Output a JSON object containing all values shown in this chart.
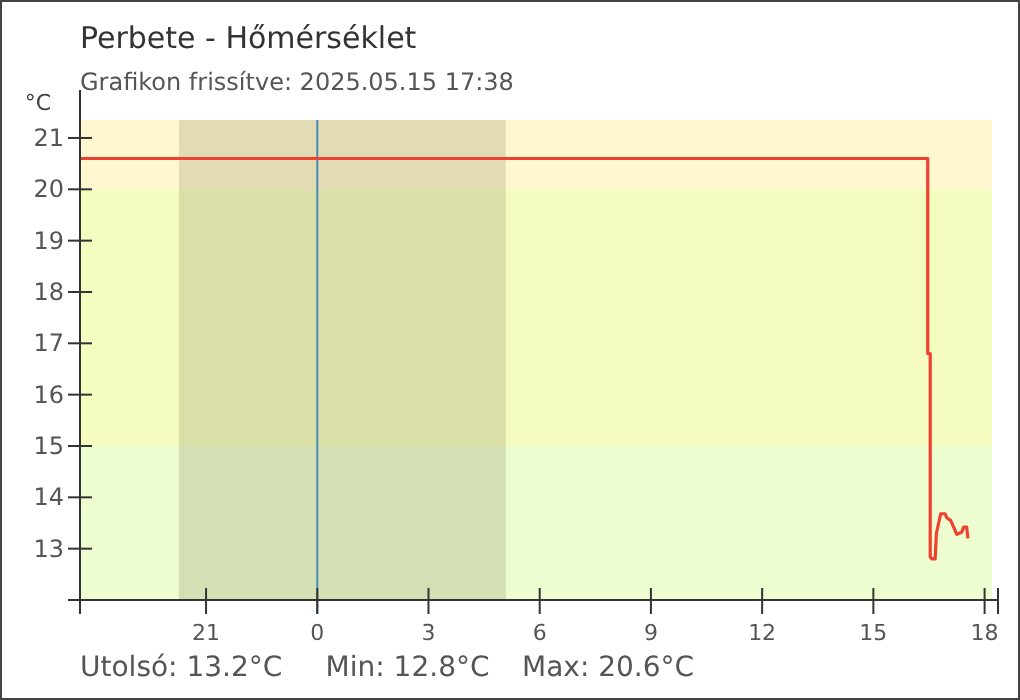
{
  "chart_data": {
    "type": "line",
    "title": "Perbete - Hőmérséklet",
    "subtitle": "Grafikon frissítve: 2025.05.15 17:38",
    "ylabel": "°C",
    "annotations": [
      "Utolsó: 13.2°C",
      "Min: 12.8°C",
      "Max: 20.6°C"
    ],
    "x": [
      "2025-05-14T17:36",
      "2025-05-15T16:28",
      "2025-05-15T16:28",
      "2025-05-15T16:32",
      "2025-05-15T16:32",
      "2025-05-15T16:35",
      "2025-05-15T16:40",
      "2025-05-15T16:42",
      "2025-05-15T16:49",
      "2025-05-15T16:56",
      "2025-05-15T16:59",
      "2025-05-15T17:05",
      "2025-05-15T17:10",
      "2025-05-15T17:15",
      "2025-05-15T17:23",
      "2025-05-15T17:26",
      "2025-05-15T17:31",
      "2025-05-15T17:33"
    ],
    "series": [
      {
        "color": "#f04030",
        "values": [
          20.6,
          20.6,
          16.8,
          16.8,
          12.84,
          12.8,
          12.8,
          13.3,
          13.68,
          13.68,
          13.6,
          13.55,
          13.42,
          13.28,
          13.32,
          13.42,
          13.42,
          13.2
        ]
      }
    ],
    "xlim": [
      "2025-05-14T17:36",
      "2025-05-15T18:12"
    ],
    "xticks": [
      {
        "value": "2025-05-14T21:00",
        "label": "21"
      },
      {
        "value": "2025-05-15T00:00",
        "label": "0"
      },
      {
        "value": "2025-05-15T03:00",
        "label": "3"
      },
      {
        "value": "2025-05-15T06:00",
        "label": "6"
      },
      {
        "value": "2025-05-15T09:00",
        "label": "9"
      },
      {
        "value": "2025-05-15T12:00",
        "label": "12"
      },
      {
        "value": "2025-05-15T15:00",
        "label": "15"
      },
      {
        "value": "2025-05-15T18:00",
        "label": "18"
      }
    ],
    "ylim": [
      12,
      21.35
    ],
    "yticks": [
      13,
      14,
      15,
      16,
      17,
      18,
      19,
      20,
      21
    ],
    "bands": [
      {
        "axis": "y",
        "from": 20,
        "to": 21.35,
        "color": "#fff7d0"
      },
      {
        "axis": "y",
        "from": 15,
        "to": 20,
        "color": "#f5fcc0"
      },
      {
        "axis": "y",
        "from": 12,
        "to": 15,
        "color": "#eefdd0"
      },
      {
        "axis": "x",
        "from": "2025-05-14T20:16",
        "to": "2025-05-15T05:05",
        "color": "#7a7a50"
      }
    ],
    "ref_lines": [
      {
        "axis": "x",
        "value": "2025-05-15T00:00",
        "color": "#4a8ab8"
      }
    ],
    "grid": false,
    "marker": "none",
    "line_style": "solid"
  }
}
